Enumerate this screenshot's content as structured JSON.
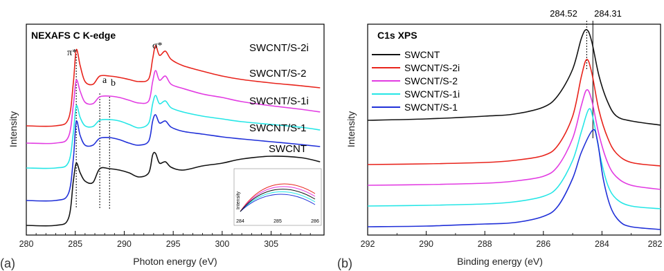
{
  "chart_data": [
    {
      "type": "line",
      "title": "NEXAFS C K-edge",
      "panel_label": "(a)",
      "xlabel": "Photon energy (eV)",
      "ylabel": "Intensity",
      "xlim": [
        280,
        310
      ],
      "x_ticks": [
        "280",
        "285",
        "290",
        "295",
        "300",
        "305"
      ],
      "annotations": [
        "π*",
        "a",
        "b",
        "σ*"
      ],
      "marker_lines_eV": [
        285.1,
        287.5,
        288.5
      ],
      "series": [
        {
          "name": "SWCNT/S-2i",
          "color": "#e8231b",
          "points": [
            [
              280,
              182
            ],
            [
              283,
              182
            ],
            [
              284.3,
              172
            ],
            [
              284.8,
              120
            ],
            [
              285.1,
              72
            ],
            [
              285.5,
              95
            ],
            [
              286.0,
              118
            ],
            [
              286.8,
              122
            ],
            [
              287.5,
              110
            ],
            [
              288.5,
              110
            ],
            [
              289.5,
              112
            ],
            [
              290.5,
              115
            ],
            [
              291.5,
              118
            ],
            [
              292.5,
              114
            ],
            [
              292.9,
              85
            ],
            [
              293.2,
              66
            ],
            [
              293.6,
              80
            ],
            [
              294.2,
              74
            ],
            [
              294.8,
              86
            ],
            [
              296,
              95
            ],
            [
              298,
              103
            ],
            [
              300,
              110
            ],
            [
              302,
              115
            ],
            [
              305,
              120
            ],
            [
              308,
              124
            ],
            [
              310,
              127
            ]
          ]
        },
        {
          "name": "SWCNT/S-2",
          "color": "#e23be2",
          "points": [
            [
              280,
              207
            ],
            [
              283,
              207
            ],
            [
              284.3,
              198
            ],
            [
              284.8,
              152
            ],
            [
              285.1,
              116
            ],
            [
              285.5,
              132
            ],
            [
              286.0,
              148
            ],
            [
              286.8,
              150
            ],
            [
              287.5,
              140
            ],
            [
              288.5,
              139
            ],
            [
              289.5,
              141
            ],
            [
              290.5,
              145
            ],
            [
              291.5,
              149
            ],
            [
              292.5,
              146
            ],
            [
              292.9,
              118
            ],
            [
              293.2,
              102
            ],
            [
              293.6,
              116
            ],
            [
              294.2,
              110
            ],
            [
              294.8,
              122
            ],
            [
              296,
              128
            ],
            [
              298,
              136
            ],
            [
              300,
              141
            ],
            [
              302,
              147
            ],
            [
              305,
              153
            ],
            [
              308,
              158
            ],
            [
              310,
              162
            ]
          ]
        },
        {
          "name": "SWCNT/S-1i",
          "color": "#24e6e6",
          "points": [
            [
              280,
              243
            ],
            [
              283,
              243
            ],
            [
              284.3,
              235
            ],
            [
              284.8,
              192
            ],
            [
              285.1,
              153
            ],
            [
              285.5,
              170
            ],
            [
              286.0,
              182
            ],
            [
              286.8,
              183
            ],
            [
              287.5,
              174
            ],
            [
              288.5,
              173
            ],
            [
              289.5,
              175
            ],
            [
              290.5,
              180
            ],
            [
              291.5,
              185
            ],
            [
              292.5,
              178
            ],
            [
              292.9,
              150
            ],
            [
              293.2,
              138
            ],
            [
              293.6,
              150
            ],
            [
              294.2,
              146
            ],
            [
              294.8,
              156
            ],
            [
              296,
              162
            ],
            [
              298,
              168
            ],
            [
              300,
              172
            ],
            [
              302,
              176
            ],
            [
              305,
              180
            ],
            [
              308,
              184
            ],
            [
              310,
              188
            ]
          ]
        },
        {
          "name": "SWCNT/S-1",
          "color": "#1f2fd8",
          "points": [
            [
              280,
              290
            ],
            [
              283,
              290
            ],
            [
              284.3,
              280
            ],
            [
              284.8,
              230
            ],
            [
              285.1,
              176
            ],
            [
              285.5,
              196
            ],
            [
              286.0,
              210
            ],
            [
              286.8,
              210
            ],
            [
              287.5,
              200
            ],
            [
              288.5,
              199
            ],
            [
              289.5,
              202
            ],
            [
              290.5,
              207
            ],
            [
              291.5,
              210
            ],
            [
              292.5,
              204
            ],
            [
              292.9,
              175
            ],
            [
              293.2,
              166
            ],
            [
              293.6,
              178
            ],
            [
              294.2,
              175
            ],
            [
              294.8,
              184
            ],
            [
              296,
              190
            ],
            [
              298,
              194
            ],
            [
              300,
              198
            ],
            [
              302,
              201
            ],
            [
              305,
              205
            ],
            [
              308,
              209
            ],
            [
              310,
              212
            ]
          ]
        },
        {
          "name": "SWCNT",
          "color": "#111111",
          "points": [
            [
              280,
              326
            ],
            [
              283,
              326
            ],
            [
              284.3,
              316
            ],
            [
              284.8,
              262
            ],
            [
              285.1,
              236
            ],
            [
              285.5,
              250
            ],
            [
              286.0,
              262
            ],
            [
              286.8,
              264
            ],
            [
              287.5,
              244
            ],
            [
              288.5,
              244
            ],
            [
              289.5,
              246
            ],
            [
              290.5,
              250
            ],
            [
              291.5,
              256
            ],
            [
              292.5,
              250
            ],
            [
              292.9,
              224
            ],
            [
              293.2,
              222
            ],
            [
              293.6,
              236
            ],
            [
              294.2,
              234
            ],
            [
              294.8,
              242
            ],
            [
              296,
              246
            ],
            [
              298,
              240
            ],
            [
              300,
              236
            ],
            [
              302,
              230
            ],
            [
              305,
              226
            ],
            [
              308,
              228
            ],
            [
              310,
              234
            ]
          ]
        }
      ],
      "inset": {
        "ylabel": "Intensity",
        "x_ticks": [
          "284",
          "285",
          "286"
        ],
        "xlim": [
          284,
          286
        ]
      }
    },
    {
      "type": "line",
      "title": "C1s XPS",
      "panel_label": "(b)",
      "xlabel": "Binding energy (eV)",
      "ylabel": "Intensity",
      "xlim": [
        292,
        282
      ],
      "x_ticks": [
        "292",
        "290",
        "288",
        "286",
        "284",
        "282"
      ],
      "peak_labels": [
        "284.52",
        "284.31"
      ],
      "peak_positions_eV": [
        284.52,
        284.31
      ],
      "series": [
        {
          "name": "SWCNT",
          "color": "#111111",
          "points": [
            [
              292,
              174
            ],
            [
              290,
              172
            ],
            [
              288,
              168
            ],
            [
              287,
              165
            ],
            [
              286,
              155
            ],
            [
              285.5,
              138
            ],
            [
              285.0,
              100
            ],
            [
              284.7,
              55
            ],
            [
              284.52,
              43
            ],
            [
              284.35,
              60
            ],
            [
              284.1,
              110
            ],
            [
              283.8,
              148
            ],
            [
              283.5,
              168
            ],
            [
              283,
              175
            ],
            [
              282,
              181
            ]
          ]
        },
        {
          "name": "SWCNT/S-2i",
          "color": "#e8231b",
          "points": [
            [
              292,
              238
            ],
            [
              290,
              237
            ],
            [
              288,
              235
            ],
            [
              287,
              232
            ],
            [
              286,
              225
            ],
            [
              285.5,
              210
            ],
            [
              285.0,
              168
            ],
            [
              284.7,
              110
            ],
            [
              284.52,
              86
            ],
            [
              284.35,
              105
            ],
            [
              284.1,
              160
            ],
            [
              283.8,
              200
            ],
            [
              283.5,
              222
            ],
            [
              283,
              235
            ],
            [
              282,
              240
            ]
          ]
        },
        {
          "name": "SWCNT/S-2",
          "color": "#e23be2",
          "points": [
            [
              292,
              268
            ],
            [
              290,
              267
            ],
            [
              288,
              265
            ],
            [
              287,
              262
            ],
            [
              286,
              255
            ],
            [
              285.5,
              240
            ],
            [
              285.0,
              200
            ],
            [
              284.7,
              152
            ],
            [
              284.52,
              130
            ],
            [
              284.35,
              145
            ],
            [
              284.1,
              195
            ],
            [
              283.8,
              236
            ],
            [
              283.5,
              256
            ],
            [
              283,
              268
            ],
            [
              282,
              274
            ]
          ]
        },
        {
          "name": "SWCNT/S-1i",
          "color": "#24e6e6",
          "points": [
            [
              292,
              298
            ],
            [
              290,
              297
            ],
            [
              288,
              295
            ],
            [
              287,
              292
            ],
            [
              286,
              284
            ],
            [
              285.5,
              270
            ],
            [
              285.0,
              232
            ],
            [
              284.7,
              190
            ],
            [
              284.45,
              158
            ],
            [
              284.3,
              172
            ],
            [
              284.05,
              228
            ],
            [
              283.8,
              268
            ],
            [
              283.5,
              288
            ],
            [
              283,
              298
            ],
            [
              282,
              302
            ]
          ]
        },
        {
          "name": "SWCNT/S-1",
          "color": "#1f2fd8",
          "points": [
            [
              292,
              328
            ],
            [
              290,
              327
            ],
            [
              288,
              324
            ],
            [
              287,
              322
            ],
            [
              286,
              313
            ],
            [
              285.5,
              298
            ],
            [
              285.0,
              258
            ],
            [
              284.7,
              220
            ],
            [
              284.31,
              188
            ],
            [
              284.15,
              205
            ],
            [
              283.95,
              260
            ],
            [
              283.7,
              300
            ],
            [
              283.4,
              320
            ],
            [
              283,
              328
            ],
            [
              282,
              332
            ]
          ]
        }
      ]
    }
  ]
}
